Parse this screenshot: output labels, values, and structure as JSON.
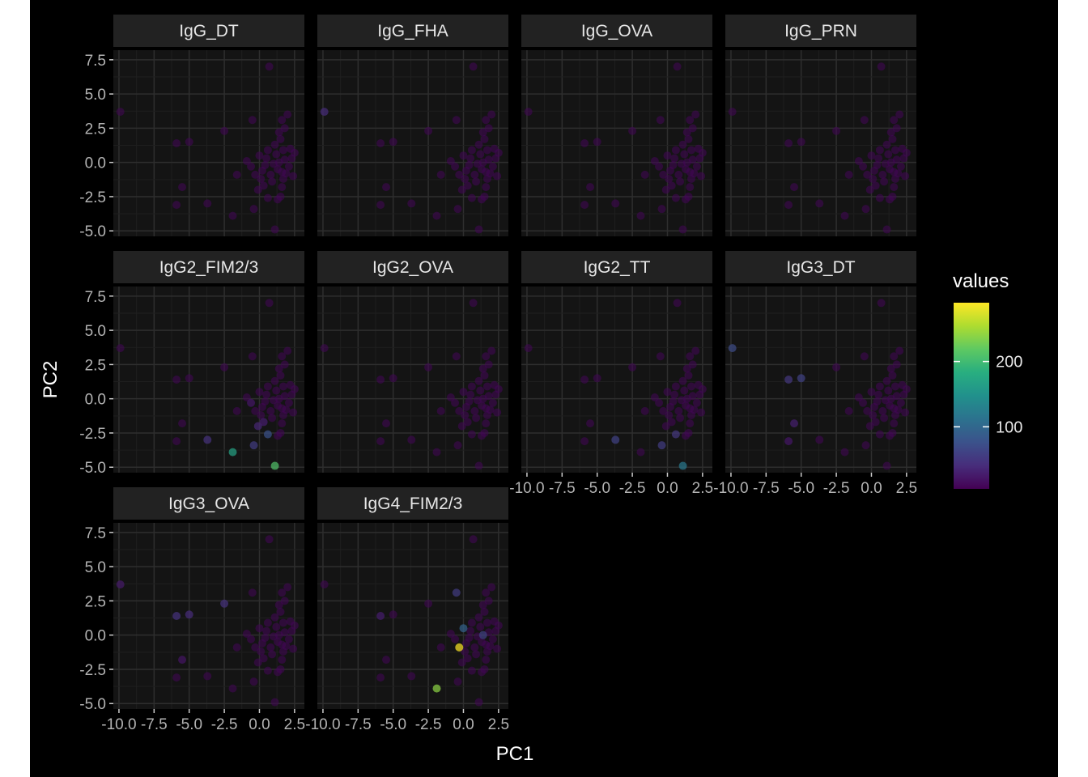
{
  "chart_data": {
    "type": "scatter",
    "title": "",
    "xlabel": "PC1",
    "ylabel": "PC2",
    "xlim": [
      -10.4,
      3.2
    ],
    "ylim": [
      -5.4,
      8.2
    ],
    "x_ticks": [
      -10.0,
      -7.5,
      -5.0,
      -2.5,
      0.0,
      2.5
    ],
    "x_tick_labels": [
      "-10.0",
      "-7.5",
      "-5.0",
      "-2.5",
      "0.0",
      "2.5"
    ],
    "y_ticks": [
      -5.0,
      -2.5,
      0.0,
      2.5,
      5.0,
      7.5
    ],
    "y_tick_labels": [
      "-5.0",
      "-2.5",
      "0.0",
      "2.5",
      "5.0",
      "7.5"
    ],
    "grid": true,
    "legend": {
      "title": "values",
      "placement": "right",
      "type": "colorbar",
      "colormap": "viridis",
      "min": 5,
      "max": 290,
      "ticks": [
        100,
        200
      ],
      "tick_labels": [
        "100",
        "200"
      ]
    },
    "points": [
      {
        "x": -9.9,
        "y": 3.7
      },
      {
        "x": 0.7,
        "y": 7.0
      },
      {
        "x": -5.9,
        "y": 1.4
      },
      {
        "x": -5.0,
        "y": 1.5
      },
      {
        "x": -2.5,
        "y": 2.3
      },
      {
        "x": -0.5,
        "y": 3.1
      },
      {
        "x": -5.5,
        "y": -1.8
      },
      {
        "x": -5.9,
        "y": -3.1
      },
      {
        "x": -3.7,
        "y": -3.0
      },
      {
        "x": -1.9,
        "y": -3.9
      },
      {
        "x": -0.4,
        "y": -3.4
      },
      {
        "x": 1.1,
        "y": -4.9
      },
      {
        "x": 0.6,
        "y": -2.6
      },
      {
        "x": 1.3,
        "y": -2.7
      },
      {
        "x": 1.5,
        "y": -2.5
      },
      {
        "x": -0.1,
        "y": -2.0
      },
      {
        "x": 0.3,
        "y": -1.7
      },
      {
        "x": 1.6,
        "y": -1.8
      },
      {
        "x": -1.6,
        "y": -0.9
      },
      {
        "x": -0.6,
        "y": -0.3
      },
      {
        "x": 0.0,
        "y": 0.5
      },
      {
        "x": 0.5,
        "y": 0.3
      },
      {
        "x": 1.2,
        "y": 0.6
      },
      {
        "x": 1.7,
        "y": 0.9
      },
      {
        "x": 2.2,
        "y": 1.0
      },
      {
        "x": 2.5,
        "y": 0.7
      },
      {
        "x": 1.5,
        "y": 1.7
      },
      {
        "x": 1.4,
        "y": 2.2
      },
      {
        "x": 1.8,
        "y": 2.5
      },
      {
        "x": 1.6,
        "y": 3.1
      },
      {
        "x": 2.0,
        "y": 3.5
      },
      {
        "x": 0.2,
        "y": -0.6
      },
      {
        "x": 0.8,
        "y": -0.9
      },
      {
        "x": 1.3,
        "y": -0.5
      },
      {
        "x": 1.9,
        "y": -0.8
      },
      {
        "x": 2.4,
        "y": -1.0
      },
      {
        "x": -0.9,
        "y": 0.1
      },
      {
        "x": 0.4,
        "y": -0.2
      },
      {
        "x": 1.0,
        "y": -0.1
      },
      {
        "x": 1.8,
        "y": 0.2
      },
      {
        "x": 2.1,
        "y": -0.3
      },
      {
        "x": 1.6,
        "y": -0.7
      },
      {
        "x": 0.1,
        "y": -1.2
      },
      {
        "x": 0.9,
        "y": -1.4
      },
      {
        "x": 1.7,
        "y": -1.2
      },
      {
        "x": 2.3,
        "y": 0.3
      },
      {
        "x": 0.6,
        "y": 0.9
      },
      {
        "x": 1.1,
        "y": 1.3
      },
      {
        "x": -0.3,
        "y": -0.9
      },
      {
        "x": 1.4,
        "y": 0.0
      }
    ],
    "panels": [
      {
        "label": "IgG_DT",
        "highlights": []
      },
      {
        "label": "IgG_FHA",
        "highlights": [
          {
            "point": 0,
            "value": 40
          }
        ]
      },
      {
        "label": "IgG_OVA",
        "highlights": []
      },
      {
        "label": "IgG_PRN",
        "highlights": []
      },
      {
        "label": "IgG2_FIM2/3",
        "highlights": [
          {
            "point": 9,
            "value": 170
          },
          {
            "point": 11,
            "value": 210
          },
          {
            "point": 10,
            "value": 55
          },
          {
            "point": 12,
            "value": 75
          },
          {
            "point": 8,
            "value": 45
          },
          {
            "point": 15,
            "value": 35
          },
          {
            "point": 16,
            "value": 28
          },
          {
            "point": 19,
            "value": 22
          }
        ]
      },
      {
        "label": "IgG2_OVA",
        "highlights": []
      },
      {
        "label": "IgG2_TT",
        "highlights": [
          {
            "point": 11,
            "value": 120
          },
          {
            "point": 8,
            "value": 60
          },
          {
            "point": 10,
            "value": 55
          },
          {
            "point": 12,
            "value": 50
          }
        ]
      },
      {
        "label": "IgG3_DT",
        "highlights": [
          {
            "point": 0,
            "value": 70
          },
          {
            "point": 2,
            "value": 50
          },
          {
            "point": 3,
            "value": 60
          },
          {
            "point": 6,
            "value": 30
          },
          {
            "point": 7,
            "value": 22
          }
        ]
      },
      {
        "label": "IgG3_OVA",
        "highlights": [
          {
            "point": 2,
            "value": 45
          },
          {
            "point": 3,
            "value": 40
          },
          {
            "point": 4,
            "value": 45
          },
          {
            "point": 0,
            "value": 25
          },
          {
            "point": 6,
            "value": 20
          }
        ]
      },
      {
        "label": "IgG4_FIM2/3",
        "highlights": [
          {
            "point": 9,
            "value": 240
          },
          {
            "point": 48,
            "value": 290
          },
          {
            "point": 20,
            "value": 95
          },
          {
            "point": 5,
            "value": 55
          },
          {
            "point": 49,
            "value": 60
          },
          {
            "point": 2,
            "value": 28
          }
        ]
      }
    ]
  }
}
